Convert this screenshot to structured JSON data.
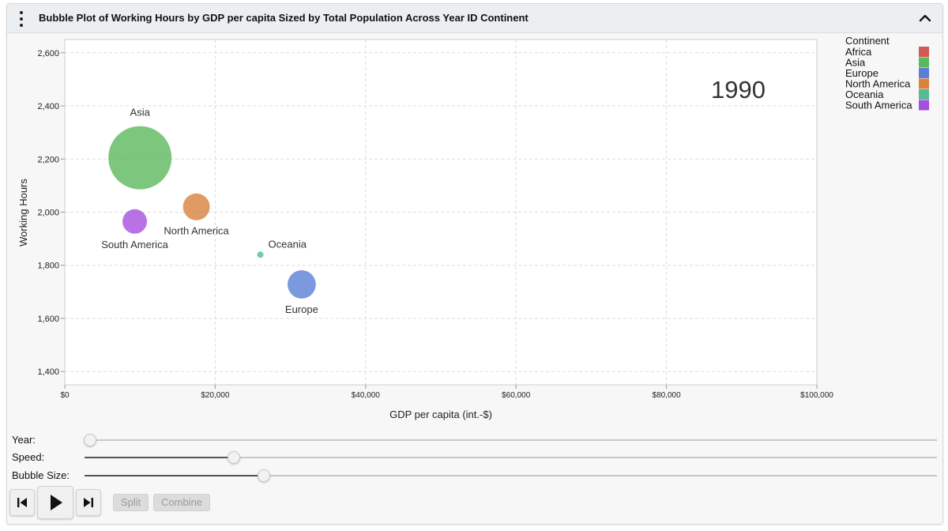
{
  "header": {
    "title": "Bubble Plot of Working Hours by GDP per capita Sized by Total Population Across Year ID Continent"
  },
  "chart_data": {
    "type": "scatter",
    "subtype": "bubble",
    "title": "Bubble Plot of Working Hours by GDP per capita Sized by Total Population Across Year ID Continent",
    "xlabel": "GDP per capita (int.-$)",
    "ylabel": "Working Hours",
    "xlim": [
      0,
      100000
    ],
    "ylim": [
      1350,
      2650
    ],
    "x_ticks": [
      0,
      20000,
      40000,
      60000,
      80000,
      100000
    ],
    "x_tick_labels": [
      "$0",
      "$20,000",
      "$40,000",
      "$60,000",
      "$80,000",
      "$100,000"
    ],
    "y_ticks": [
      1400,
      1600,
      1800,
      2000,
      2200,
      2400,
      2600
    ],
    "y_tick_labels": [
      "1,400",
      "1,600",
      "1,800",
      "2,000",
      "2,200",
      "2,400",
      "2,600"
    ],
    "grid": true,
    "year_label": "1990",
    "legend": {
      "title": "Continent",
      "placement": "top-right",
      "entries": [
        {
          "name": "Africa",
          "color": "#d05a57"
        },
        {
          "name": "Asia",
          "color": "#5cb85c"
        },
        {
          "name": "Europe",
          "color": "#5b7fd6"
        },
        {
          "name": "North America",
          "color": "#d8823d"
        },
        {
          "name": "Oceania",
          "color": "#55bb95"
        },
        {
          "name": "South America",
          "color": "#a64fde"
        }
      ]
    },
    "points": [
      {
        "label": "Asia",
        "x": 10000,
        "y": 2205,
        "size": 100,
        "color": "#5cb85c",
        "label_pos": "above"
      },
      {
        "label": "North America",
        "x": 17500,
        "y": 2020,
        "size": 18,
        "color": "#d8823d",
        "label_pos": "below"
      },
      {
        "label": "South America",
        "x": 9300,
        "y": 1965,
        "size": 15,
        "color": "#a64fde",
        "label_pos": "below"
      },
      {
        "label": "Oceania",
        "x": 26000,
        "y": 1840,
        "size": 1,
        "color": "#55bb95",
        "label_pos": "right"
      },
      {
        "label": "Europe",
        "x": 31500,
        "y": 1728,
        "size": 20,
        "color": "#5b7fd6",
        "label_pos": "below"
      }
    ]
  },
  "controls": {
    "year_label": "Year:",
    "speed_label": "Speed:",
    "bubble_size_label": "Bubble Size:",
    "year_value": 0.0,
    "speed_value": 0.175,
    "bubble_size_value": 0.21,
    "split_label": "Split",
    "combine_label": "Combine"
  }
}
